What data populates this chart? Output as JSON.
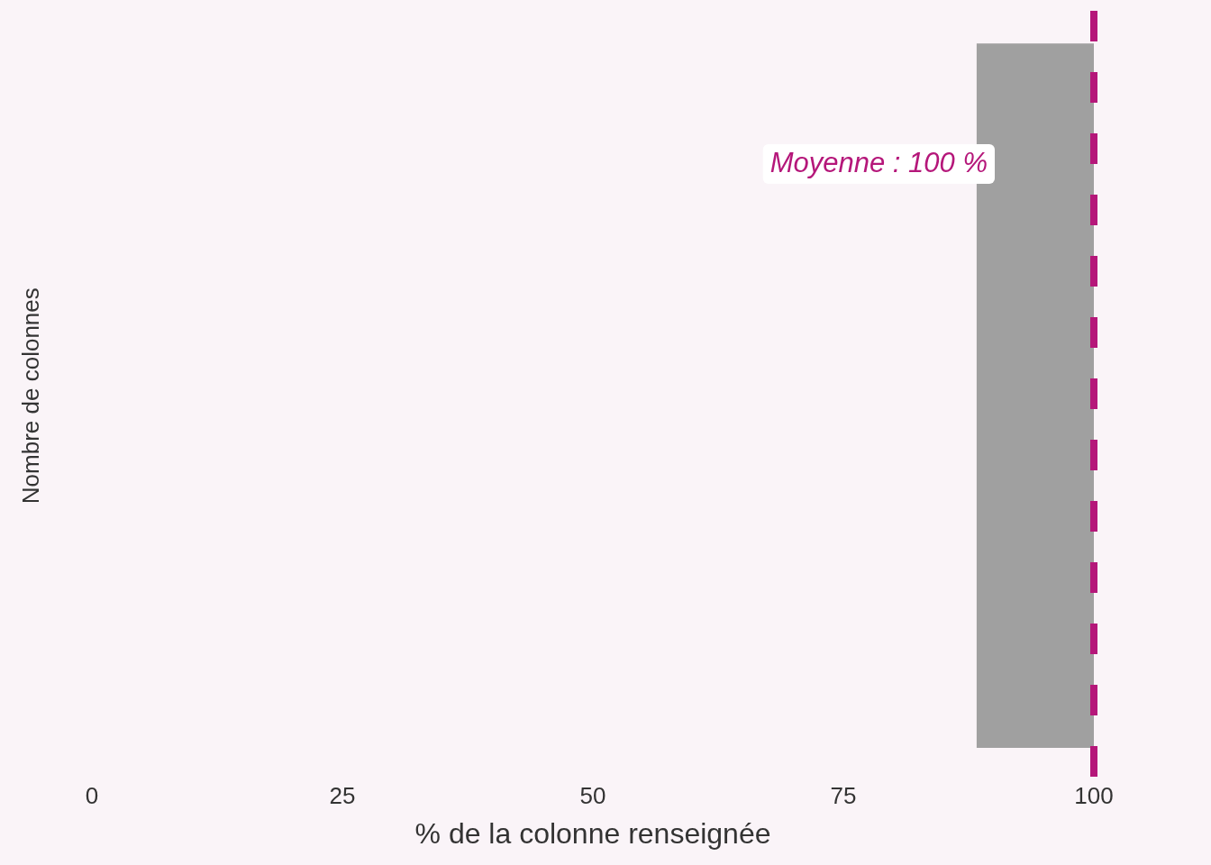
{
  "chart_data": {
    "type": "bar",
    "orientation": "horizontal",
    "xlabel": "% de la colonne renseignée",
    "ylabel": "Nombre de colonnes",
    "categories": [
      null
    ],
    "base": [
      88.3
    ],
    "values": [
      11.7
    ],
    "color": "#a0a0a0",
    "xlim": [
      0,
      100
    ],
    "xticks": [
      0,
      25,
      50,
      75,
      100
    ],
    "ref_lines": [
      {
        "axis": "x",
        "value": 100,
        "label": "Moyenne : 100 %",
        "color": "#b5177a",
        "line_style": "dashed"
      }
    ]
  }
}
